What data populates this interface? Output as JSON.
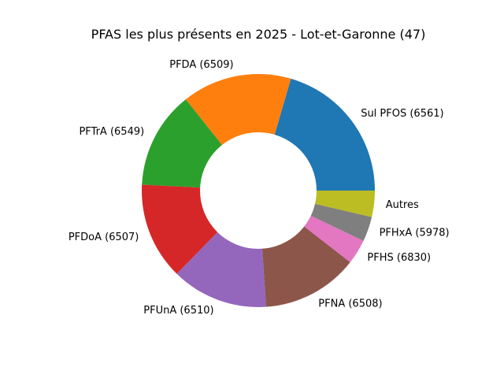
{
  "chart_data": {
    "type": "pie",
    "title": "PFAS les plus présents en 2025 - Lot-et-Garonne (47)",
    "donut": true,
    "legend": "none",
    "slices": [
      {
        "label": "Sul PFOS (6561)",
        "value": 20.2,
        "color": "#1f77b4"
      },
      {
        "label": "PFDA (6509)",
        "value": 15.0,
        "color": "#ff7f0e"
      },
      {
        "label": "PFTrA (6549)",
        "value": 13.3,
        "color": "#2ca02c"
      },
      {
        "label": "PFDoA (6507)",
        "value": 13.3,
        "color": "#d62728"
      },
      {
        "label": "PFUnA (6510)",
        "value": 13.2,
        "color": "#9467bd"
      },
      {
        "label": "PFNA (6508)",
        "value": 13.2,
        "color": "#8c564b"
      },
      {
        "label": "PFHS (6830)",
        "value": 3.4,
        "color": "#e377c2"
      },
      {
        "label": "PFHxA (5978)",
        "value": 3.4,
        "color": "#7f7f7f"
      },
      {
        "label": "Autres",
        "value": 3.6,
        "color": "#bcbd22"
      }
    ]
  }
}
